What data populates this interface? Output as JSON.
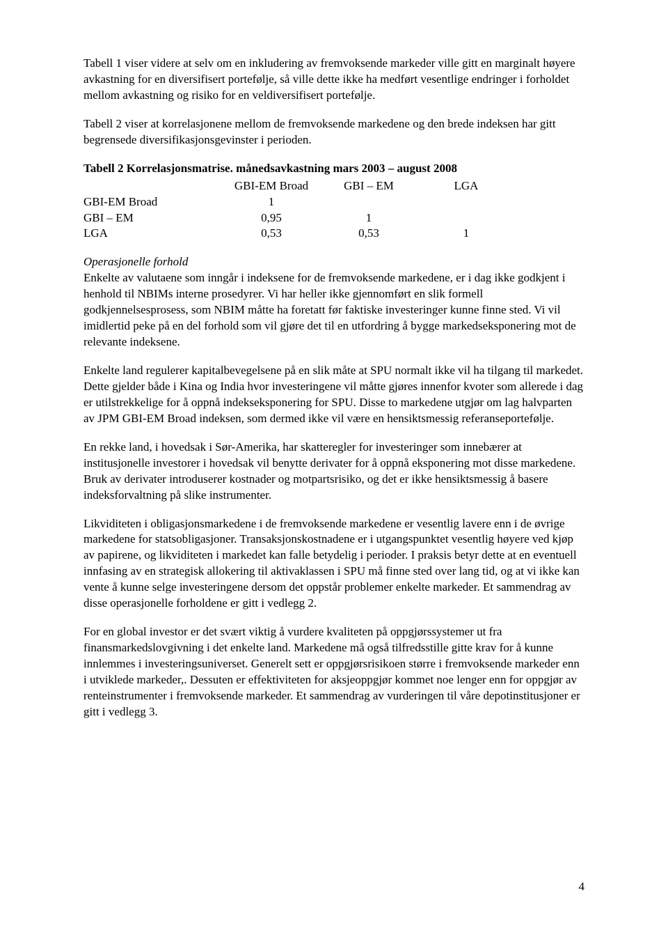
{
  "para1": "Tabell 1 viser videre at selv om en inkludering av fremvoksende markeder ville gitt en marginalt høyere avkastning for en diversifisert portefølje, så ville dette ikke ha medført vesentlige endringer i forholdet mellom avkastning og risiko for en veldiversifisert portefølje.",
  "para2": "Tabell 2 viser at korrelasjonene mellom de fremvoksende markedene og den brede indeksen har gitt begrensede diversifikasjonsgevinster i perioden.",
  "tableTitle": "Tabell 2 Korrelasjonsmatrise. månedsavkastning mars 2003 – august 2008",
  "corr": {
    "headers": [
      "",
      "GBI-EM Broad",
      "GBI – EM",
      "LGA"
    ],
    "rows": [
      {
        "label": "GBI-EM Broad",
        "c1": "1",
        "c2": "",
        "c3": ""
      },
      {
        "label": "GBI – EM",
        "c1": "0,95",
        "c2": "1",
        "c3": ""
      },
      {
        "label": "LGA",
        "c1": "0,53",
        "c2": "0,53",
        "c3": "1"
      }
    ]
  },
  "opHeading": "Operasjonelle forhold",
  "para3": "Enkelte av valutaene som inngår i indeksene for de fremvoksende markedene, er i dag ikke godkjent i henhold til NBIMs interne prosedyrer. Vi har heller ikke gjennomført en slik formell godkjennelsesprosess, som NBIM måtte ha foretatt før faktiske investeringer kunne finne sted. Vi vil imidlertid peke på en del forhold som vil gjøre det til en utfordring å bygge markedseksponering mot de relevante indeksene.",
  "para4": "Enkelte land regulerer kapitalbevegelsene på en slik måte at SPU normalt ikke vil ha tilgang til markedet. Dette gjelder både i Kina og India hvor investeringene vil måtte gjøres innenfor kvoter som allerede i dag er utilstrekkelige for å oppnå indekseksponering for SPU. Disse to markedene utgjør om lag halvparten av JPM GBI-EM Broad indeksen, som dermed ikke vil være en hensiktsmessig referanseportefølje.",
  "para5": "En rekke land, i hovedsak i Sør-Amerika, har skatteregler for investeringer som innebærer at institusjonelle investorer i hovedsak vil benytte derivater for å oppnå eksponering mot disse markedene. Bruk av derivater introduserer kostnader og motpartsrisiko, og det er ikke hensiktsmessig å basere indeksforvaltning på slike instrumenter.",
  "para6": "Likviditeten i obligasjonsmarkedene i de fremvoksende markedene er vesentlig lavere enn i de øvrige markedene for statsobligasjoner. Transaksjonskostnadene er i utgangspunktet vesentlig høyere ved kjøp av papirene, og likviditeten i markedet kan falle betydelig i perioder. I praksis betyr dette at en eventuell innfasing av en strategisk allokering til aktivaklassen i SPU må finne sted over lang tid, og at vi ikke kan vente å kunne selge investeringene dersom det oppstår problemer enkelte markeder. Et sammendrag av disse operasjonelle forholdene er gitt i vedlegg 2.",
  "para7": "For en global investor er det svært viktig å vurdere kvaliteten på oppgjørssystemer ut fra finansmarkedslovgivning i det enkelte land. Markedene må også tilfredsstille gitte krav for å kunne innlemmes i investeringsuniverset. Generelt sett er oppgjørsrisikoen større i fremvoksende markeder enn i utviklede markeder,. Dessuten er effektiviteten for aksjeoppgjør kommet noe lenger enn for oppgjør av renteinstrumenter i fremvoksende markeder. Et sammendrag av vurderingen til våre depotinstitusjoner er gitt i vedlegg 3.",
  "pageNumber": "4"
}
